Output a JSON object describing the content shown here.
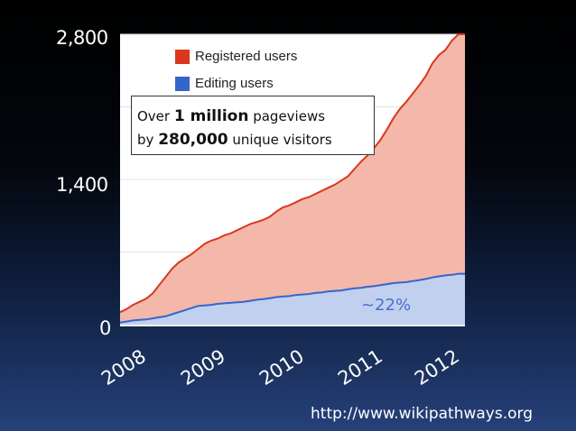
{
  "chart_data": {
    "type": "area",
    "x": [
      "2008-01",
      "2008-02",
      "2008-03",
      "2008-04",
      "2008-05",
      "2008-06",
      "2008-07",
      "2008-08",
      "2008-09",
      "2008-10",
      "2008-11",
      "2008-12",
      "2009-01",
      "2009-02",
      "2009-03",
      "2009-04",
      "2009-05",
      "2009-06",
      "2009-07",
      "2009-08",
      "2009-09",
      "2009-10",
      "2009-11",
      "2009-12",
      "2010-01",
      "2010-02",
      "2010-03",
      "2010-04",
      "2010-05",
      "2010-06",
      "2010-07",
      "2010-08",
      "2010-09",
      "2010-10",
      "2010-11",
      "2010-12",
      "2011-01",
      "2011-02",
      "2011-03",
      "2011-04",
      "2011-05",
      "2011-06",
      "2011-07",
      "2011-08",
      "2011-09",
      "2011-10",
      "2011-11",
      "2011-12",
      "2012-01",
      "2012-02",
      "2012-03",
      "2012-04",
      "2012-05",
      "2012-06"
    ],
    "series": [
      {
        "name": "Registered users",
        "color": "#d9381e",
        "values": [
          120,
          150,
          190,
          220,
          250,
          300,
          380,
          460,
          540,
          600,
          640,
          680,
          730,
          780,
          810,
          830,
          860,
          880,
          910,
          940,
          970,
          990,
          1010,
          1040,
          1090,
          1130,
          1150,
          1180,
          1210,
          1230,
          1260,
          1290,
          1320,
          1350,
          1390,
          1430,
          1500,
          1570,
          1630,
          1700,
          1780,
          1880,
          1990,
          2080,
          2150,
          2230,
          2310,
          2400,
          2520,
          2600,
          2650,
          2740,
          2800,
          2800
        ]
      },
      {
        "name": "Editing users",
        "color": "#3366cc",
        "values": [
          20,
          30,
          40,
          45,
          50,
          60,
          70,
          80,
          100,
          120,
          140,
          160,
          180,
          185,
          190,
          200,
          205,
          210,
          215,
          220,
          230,
          240,
          245,
          255,
          265,
          270,
          275,
          285,
          290,
          295,
          305,
          310,
          320,
          325,
          330,
          340,
          350,
          355,
          365,
          370,
          380,
          390,
          400,
          405,
          410,
          420,
          430,
          440,
          455,
          465,
          475,
          480,
          490,
          490
        ]
      }
    ],
    "yticks": [
      "2,800",
      "1,400",
      "0"
    ],
    "ylim": [
      0,
      2800
    ],
    "xticks": [
      "2008",
      "2009",
      "2010",
      "2011",
      "2012"
    ],
    "grid": true,
    "legend_position": "top-left"
  },
  "annotation": {
    "line1_prefix": "Over",
    "line1_bold": "1 million",
    "line1_suffix": "pageviews",
    "line2_prefix": "by",
    "line2_bold": "280,000",
    "line2_suffix": "unique visitors"
  },
  "percent_label": "~22%",
  "footer_url": "http://www.wikipathways.org"
}
